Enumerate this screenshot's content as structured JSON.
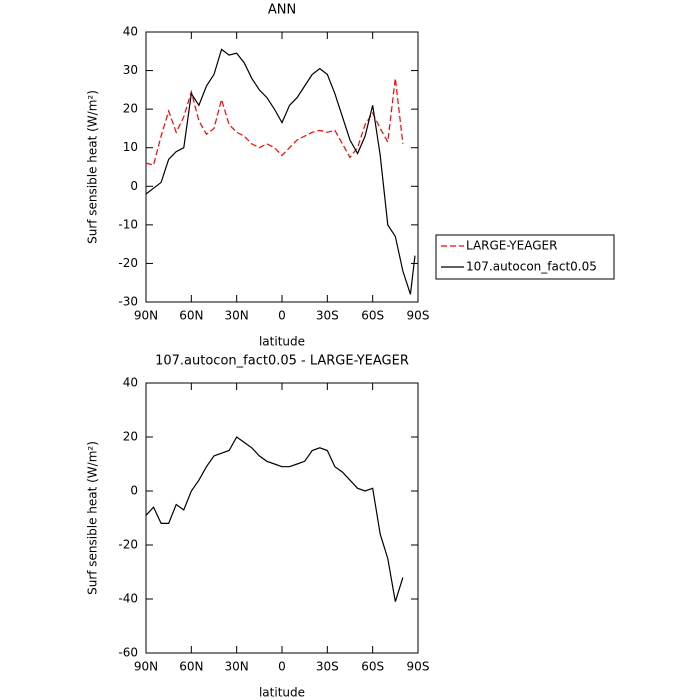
{
  "chart_data": [
    {
      "type": "line",
      "title": "ANN",
      "x_label": "latitude",
      "y_label": "Surf sensible heat (W/m²)",
      "x": [
        90,
        85,
        80,
        75,
        70,
        65,
        60,
        55,
        50,
        45,
        40,
        35,
        30,
        25,
        20,
        15,
        10,
        5,
        0,
        -5,
        -10,
        -15,
        -20,
        -25,
        -30,
        -35,
        -40,
        -45,
        -50,
        -55,
        -60,
        -65,
        -70,
        -75,
        -80,
        -85,
        -88
      ],
      "series": [
        {
          "name": "LARGE-YEAGER",
          "color": "#ff0000",
          "style": "dashed",
          "values": [
            6,
            5.5,
            13,
            19.5,
            14,
            18,
            24.5,
            17,
            13.5,
            15,
            22.5,
            16,
            14,
            13,
            11,
            10,
            11,
            10,
            8,
            10,
            12,
            13,
            14,
            14.5,
            14,
            14.5,
            11,
            7.5,
            10,
            16,
            19,
            15,
            11.5,
            28,
            11,
            null,
            null
          ]
        },
        {
          "name": "107.autocon_fact0.05",
          "color": "#000000",
          "style": "solid",
          "values": [
            -2,
            -0.5,
            1,
            7,
            9,
            10,
            24,
            21,
            26,
            29,
            35.5,
            34,
            34.5,
            32,
            28,
            25,
            23,
            20,
            16.5,
            21,
            23,
            26,
            29,
            30.5,
            29,
            24,
            18,
            12,
            8.5,
            13,
            21,
            8,
            -10,
            -13,
            -22,
            -28,
            -18
          ]
        }
      ],
      "xlim": [
        90,
        -90
      ],
      "xticks": [
        {
          "value": 90,
          "label": "90N"
        },
        {
          "value": 60,
          "label": "60N"
        },
        {
          "value": 30,
          "label": "30N"
        },
        0,
        {
          "value": -30,
          "label": "30S"
        },
        {
          "value": -60,
          "label": "60S"
        },
        {
          "value": -90,
          "label": "90S"
        }
      ],
      "ylim": [
        -30,
        40
      ],
      "yticks": [
        -30,
        -20,
        -10,
        0,
        10,
        20,
        30,
        40
      ],
      "legend": "right"
    },
    {
      "type": "line",
      "title": "107.autocon_fact0.05 - LARGE-YEAGER",
      "x_label": "latitude",
      "y_label": "Surf sensible heat (W/m²)",
      "x": [
        90,
        85,
        80,
        75,
        70,
        65,
        60,
        55,
        50,
        45,
        40,
        35,
        30,
        25,
        20,
        15,
        10,
        5,
        0,
        -5,
        -10,
        -15,
        -20,
        -25,
        -30,
        -35,
        -40,
        -45,
        -50,
        -55,
        -60,
        -65,
        -70,
        -75,
        -80
      ],
      "series": [
        {
          "color": "#000000",
          "style": "solid",
          "values": [
            -9,
            -6,
            -12,
            -12,
            -5,
            -7,
            0,
            4,
            9,
            13,
            14,
            15,
            20,
            18,
            16,
            13,
            11,
            10,
            9,
            9,
            10,
            11,
            15,
            16,
            15,
            9,
            7,
            4,
            1,
            0,
            1,
            -16,
            -25,
            -41,
            -32
          ]
        }
      ],
      "xlim": [
        90,
        -90
      ],
      "xticks": [
        {
          "value": 90,
          "label": "90N"
        },
        {
          "value": 60,
          "label": "60N"
        },
        {
          "value": 30,
          "label": "30N"
        },
        0,
        {
          "value": -30,
          "label": "30S"
        },
        {
          "value": -60,
          "label": "60S"
        },
        {
          "value": -90,
          "label": "90S"
        }
      ],
      "ylim": [
        -60,
        40
      ],
      "yticks": [
        -60,
        -40,
        -20,
        0,
        20,
        40
      ]
    }
  ]
}
